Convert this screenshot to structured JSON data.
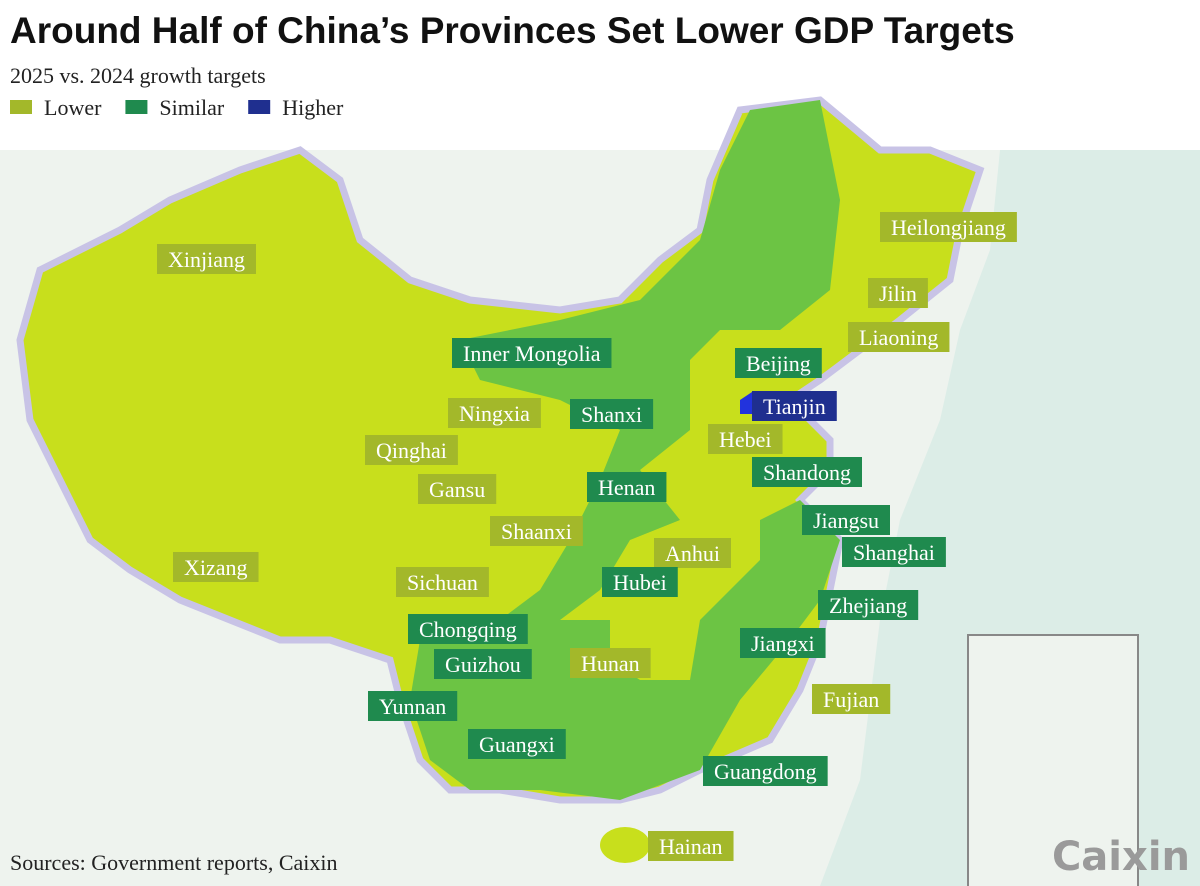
{
  "header": {
    "title": "Around Half of China’s Provinces Set Lower GDP Targets",
    "subtitle": "2025 vs. 2024 growth targets"
  },
  "legend": [
    {
      "label": "Lower",
      "color": "#a3b82a",
      "fill": "#c8df1c"
    },
    {
      "label": "Similar",
      "color": "#1f8a4e",
      "fill": "#6cc444"
    },
    {
      "label": "Higher",
      "color": "#1f2f8f",
      "fill": "#2233dd"
    }
  ],
  "provinces": [
    {
      "name": "Heilongjiang",
      "target": "Lower"
    },
    {
      "name": "Jilin",
      "target": "Lower"
    },
    {
      "name": "Liaoning",
      "target": "Lower"
    },
    {
      "name": "Beijing",
      "target": "Similar"
    },
    {
      "name": "Tianjin",
      "target": "Higher"
    },
    {
      "name": "Hebei",
      "target": "Lower"
    },
    {
      "name": "Shandong",
      "target": "Similar"
    },
    {
      "name": "Inner Mongolia",
      "target": "Similar"
    },
    {
      "name": "Xinjiang",
      "target": "Lower"
    },
    {
      "name": "Ningxia",
      "target": "Lower"
    },
    {
      "name": "Shanxi",
      "target": "Similar"
    },
    {
      "name": "Qinghai",
      "target": "Lower"
    },
    {
      "name": "Gansu",
      "target": "Lower"
    },
    {
      "name": "Henan",
      "target": "Similar"
    },
    {
      "name": "Shaanxi",
      "target": "Lower"
    },
    {
      "name": "Jiangsu",
      "target": "Similar"
    },
    {
      "name": "Anhui",
      "target": "Lower"
    },
    {
      "name": "Shanghai",
      "target": "Similar"
    },
    {
      "name": "Xizang",
      "target": "Lower"
    },
    {
      "name": "Sichuan",
      "target": "Lower"
    },
    {
      "name": "Hubei",
      "target": "Similar"
    },
    {
      "name": "Zhejiang",
      "target": "Similar"
    },
    {
      "name": "Chongqing",
      "target": "Similar"
    },
    {
      "name": "Jiangxi",
      "target": "Similar"
    },
    {
      "name": "Guizhou",
      "target": "Similar"
    },
    {
      "name": "Hunan",
      "target": "Lower"
    },
    {
      "name": "Fujian",
      "target": "Lower"
    },
    {
      "name": "Yunnan",
      "target": "Similar"
    },
    {
      "name": "Guangxi",
      "target": "Similar"
    },
    {
      "name": "Guangdong",
      "target": "Similar"
    },
    {
      "name": "Hainan",
      "target": "Lower"
    }
  ],
  "footer": {
    "source": "Sources: Government reports, Caixin",
    "logo": "Caixin"
  }
}
